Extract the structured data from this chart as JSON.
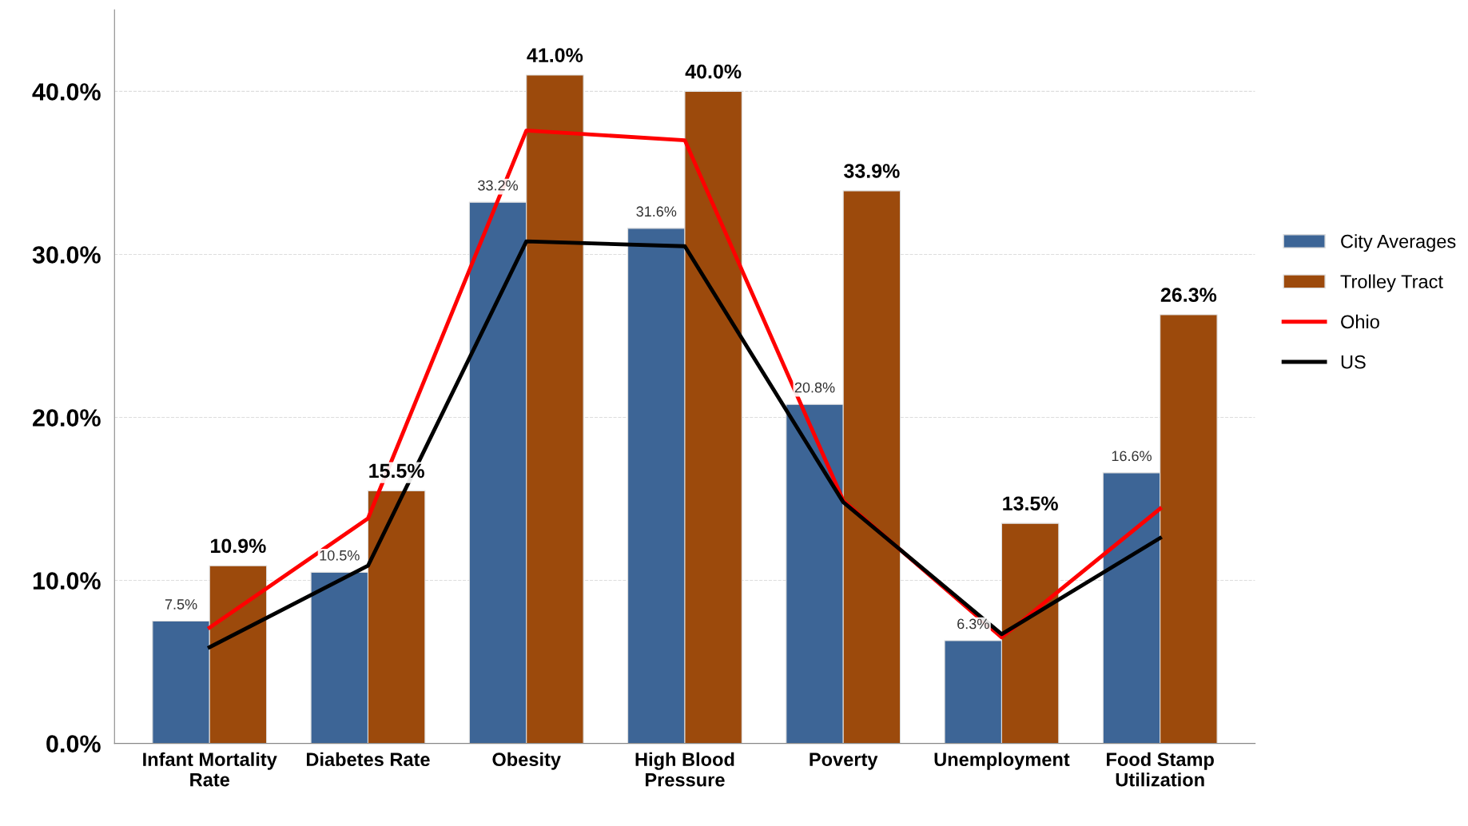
{
  "chart_data": {
    "type": "bar",
    "categories": [
      "Infant Mortality\nRate",
      "Diabetes Rate",
      "Obesity",
      "High Blood\nPressure",
      "Poverty",
      "Unemployment",
      "Food Stamp\nUtilization"
    ],
    "series": [
      {
        "name": "City Averages",
        "color": "#3d6596",
        "values": [
          7.5,
          10.5,
          33.2,
          31.6,
          20.8,
          6.3,
          16.6
        ],
        "value_labels": [
          "7.5%",
          "10.5%",
          "33.2%",
          "31.6%",
          "20.8%",
          "6.3%",
          "16.6%"
        ]
      },
      {
        "name": "Trolley Tract",
        "color": "#9c4a0c",
        "values": [
          10.9,
          15.5,
          41.0,
          40.0,
          33.9,
          13.5,
          26.3
        ],
        "value_labels": [
          "10.9%",
          "15.5%",
          "41.0%",
          "40.0%",
          "33.9%",
          "13.5%",
          "26.3%"
        ]
      },
      {
        "name": "Ohio",
        "type": "line",
        "color": "#ff0000",
        "values": [
          7.1,
          13.8,
          37.6,
          37.0,
          14.9,
          6.5,
          14.4
        ]
      },
      {
        "name": "US",
        "type": "line",
        "color": "#000000",
        "values": [
          5.9,
          10.9,
          30.8,
          30.5,
          14.8,
          6.7,
          12.6
        ]
      }
    ],
    "ylim": [
      0,
      45
    ],
    "yticks": [
      {
        "value": 0,
        "label": "0.0%"
      },
      {
        "value": 10,
        "label": "10.0%"
      },
      {
        "value": 20,
        "label": "20.0%"
      },
      {
        "value": 30,
        "label": "30.0%"
      },
      {
        "value": 40,
        "label": "40.0%"
      }
    ],
    "grid": "y",
    "legend": "right",
    "marker": "none",
    "line_style": "solid"
  }
}
